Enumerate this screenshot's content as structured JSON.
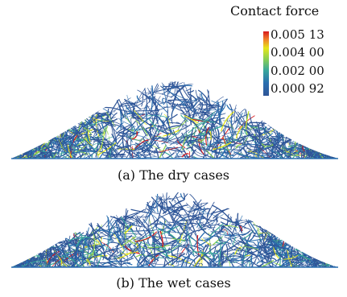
{
  "legend": {
    "title": "Contact force",
    "ticks": [
      "0.005 13",
      "0.004 00",
      "0.002 00",
      "0.000 92"
    ],
    "colormap": [
      "#d7191c",
      "#f07c2a",
      "#e6e619",
      "#8ed14f",
      "#3aa89a",
      "#2a6fb0",
      "#2f5597"
    ]
  },
  "panels": [
    {
      "caption": "(a) The dry cases"
    },
    {
      "caption": "(b) The wet cases"
    }
  ]
}
